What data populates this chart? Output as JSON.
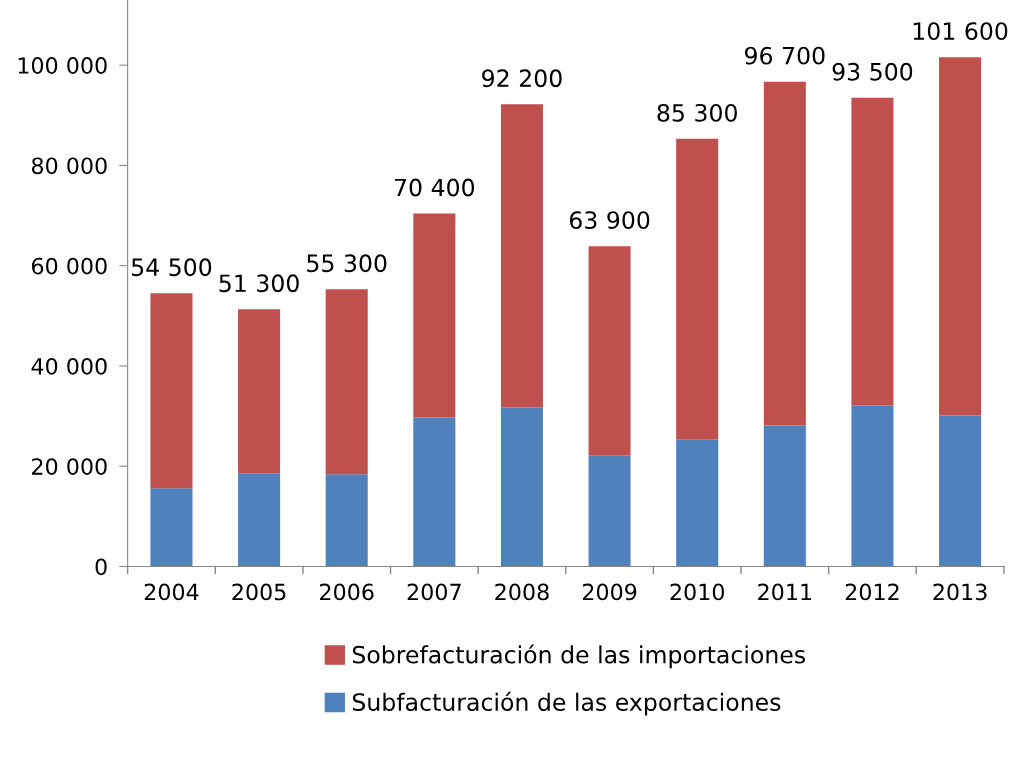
{
  "chart_data": {
    "type": "bar",
    "stacked": true,
    "categories": [
      "2004",
      "2005",
      "2006",
      "2007",
      "2008",
      "2009",
      "2010",
      "2011",
      "2012",
      "2013"
    ],
    "series": [
      {
        "name": "Subfacturación de las exportaciones",
        "color": "#4f81bd",
        "values": [
          15600,
          18600,
          18400,
          29700,
          31700,
          22200,
          25400,
          28100,
          32100,
          30100
        ]
      },
      {
        "name": "Sobrefacturación de las importaciones",
        "color": "#c0504d",
        "values": [
          38900,
          32700,
          36900,
          40700,
          60500,
          41700,
          59900,
          68600,
          61400,
          71500
        ]
      }
    ],
    "totals": [
      "54 500",
      "51 300",
      "55 300",
      "70 400",
      "92 200",
      "63 900",
      "85 300",
      "96 700",
      "93 500",
      "101 600"
    ],
    "ylim": [
      0,
      113000
    ],
    "yticks": [
      {
        "value": 0,
        "label": "0"
      },
      {
        "value": 20000,
        "label": "20 000"
      },
      {
        "value": 40000,
        "label": "40 000"
      },
      {
        "value": 60000,
        "label": "60 000"
      },
      {
        "value": 80000,
        "label": "80 000"
      },
      {
        "value": 100000,
        "label": "100 000"
      }
    ],
    "grid": false,
    "legend": "bottom"
  }
}
